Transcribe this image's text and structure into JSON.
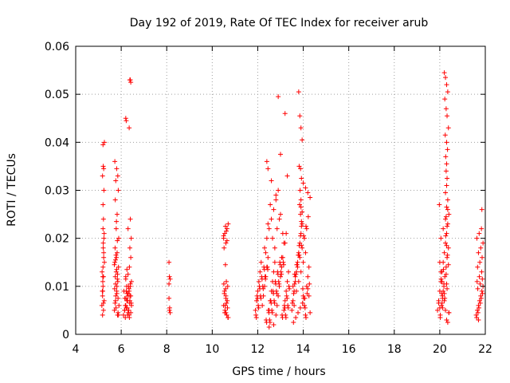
{
  "chart_data": {
    "type": "scatter",
    "title": "Day 192 of 2019, Rate Of TEC Index for receiver arub",
    "xlabel": "GPS time / hours",
    "ylabel": "ROTI / TECUs",
    "xlim": [
      4,
      22
    ],
    "ylim": [
      0,
      0.06
    ],
    "x_ticks": [
      "4",
      "6",
      "8",
      "10",
      "12",
      "14",
      "16",
      "18",
      "20",
      "22"
    ],
    "y_ticks": [
      "0",
      "0.01",
      "0.02",
      "0.03",
      "0.04",
      "0.05",
      "0.06"
    ],
    "grid": true,
    "marker": "+",
    "color": "#ff0000",
    "series": [
      {
        "x": [
          5.15,
          5.18,
          5.2,
          5.22,
          5.25,
          5.2,
          5.23,
          5.17,
          5.21,
          5.24,
          5.19,
          5.22,
          5.16,
          5.26,
          5.2,
          5.18,
          5.23,
          5.21,
          5.25,
          5.19,
          5.22,
          5.2,
          5.24,
          5.18,
          5.21,
          5.26,
          5.2,
          5.23,
          5.19,
          5.22,
          5.7,
          5.75,
          5.8,
          5.85,
          5.78,
          5.72,
          5.82,
          5.9,
          5.76,
          5.81,
          5.74,
          5.88,
          5.79,
          5.73,
          5.84,
          5.77,
          5.86,
          5.71,
          5.83,
          5.8,
          5.75,
          5.89,
          5.78,
          5.82,
          5.74,
          5.87,
          5.76,
          5.8,
          5.72,
          5.85,
          5.79,
          5.83,
          5.77,
          5.81,
          5.73,
          5.88,
          5.75,
          5.84,
          5.7,
          5.86,
          6.1,
          6.15,
          6.2,
          6.25,
          6.3,
          6.35,
          6.4,
          6.45,
          6.2,
          6.28,
          6.33,
          6.18,
          6.38,
          6.42,
          6.12,
          6.24,
          6.36,
          6.3,
          6.22,
          6.44,
          6.16,
          6.26,
          6.34,
          6.4,
          6.2,
          6.3,
          6.25,
          6.35,
          6.15,
          6.45,
          6.28,
          6.38,
          6.22,
          6.32,
          6.18,
          6.42,
          6.27,
          6.37,
          6.21,
          6.31,
          6.2,
          6.22,
          6.38,
          6.4,
          6.42,
          6.35,
          6.3,
          6.4,
          6.44,
          6.38,
          6.42,
          6.36,
          8.1,
          8.12,
          8.15,
          8.1,
          8.13,
          8.15,
          8.1,
          8.12,
          10.5,
          10.55,
          10.6,
          10.65,
          10.7,
          10.52,
          10.58,
          10.62,
          10.68,
          10.54,
          10.6,
          10.66,
          10.5,
          10.56,
          10.64,
          10.7,
          10.53,
          10.59,
          10.63,
          10.67,
          10.55,
          10.6,
          10.51,
          10.57,
          10.69,
          10.6,
          10.65,
          10.5,
          10.62,
          10.58,
          11.9,
          11.95,
          12.0,
          12.05,
          12.1,
          12.15,
          12.2,
          12.25,
          12.3,
          12.35,
          12.4,
          12.45,
          12.5,
          12.55,
          12.6,
          12.65,
          12.7,
          12.75,
          12.8,
          12.85,
          12.9,
          12.95,
          13.0,
          13.05,
          13.1,
          13.15,
          13.2,
          13.25,
          13.3,
          13.35,
          11.92,
          12.02,
          12.12,
          12.22,
          12.32,
          12.42,
          12.52,
          12.62,
          12.72,
          12.82,
          12.92,
          13.02,
          13.12,
          13.22,
          13.32,
          11.97,
          12.07,
          12.17,
          12.27,
          12.37,
          12.47,
          12.57,
          12.67,
          12.77,
          12.87,
          12.97,
          13.07,
          13.17,
          13.27,
          13.37,
          11.94,
          12.04,
          12.14,
          12.24,
          12.34,
          12.44,
          12.54,
          12.64,
          12.74,
          12.84,
          12.94,
          13.04,
          13.14,
          13.24,
          13.34,
          11.99,
          12.09,
          12.19,
          12.29,
          12.39,
          12.49,
          12.59,
          12.69,
          12.79,
          12.89,
          12.99,
          13.09,
          13.19,
          13.29,
          13.39,
          12.3,
          12.4,
          12.5,
          12.6,
          12.7,
          12.8,
          12.9,
          13.0,
          13.1,
          13.2,
          12.35,
          12.45,
          12.55,
          12.65,
          12.75,
          12.85,
          12.95,
          13.05,
          13.15,
          13.25,
          12.4,
          12.45,
          12.9,
          13.0,
          13.2,
          13.3,
          12.6,
          12.8,
          12.5,
          12.7,
          13.5,
          13.55,
          13.6,
          13.65,
          13.7,
          13.75,
          13.8,
          13.85,
          13.9,
          13.95,
          14.0,
          14.05,
          14.1,
          14.15,
          14.2,
          14.25,
          14.3,
          13.52,
          13.58,
          13.62,
          13.68,
          13.72,
          13.78,
          13.82,
          13.88,
          13.92,
          13.98,
          14.02,
          14.08,
          14.12,
          13.55,
          13.65,
          13.75,
          13.85,
          13.95,
          14.05,
          14.15,
          14.25,
          13.6,
          13.7,
          13.8,
          13.9,
          14.0,
          14.1,
          14.2,
          13.57,
          13.67,
          13.77,
          13.87,
          13.97,
          14.07,
          14.17,
          14.27,
          13.62,
          13.72,
          13.82,
          13.92,
          14.02,
          14.12,
          14.22,
          13.8,
          13.85,
          13.9,
          13.95,
          13.82,
          13.88,
          13.92,
          13.86,
          13.9,
          13.84,
          13.88,
          13.92,
          14.0,
          14.1,
          14.2,
          14.3,
          13.9,
          13.95,
          19.9,
          19.95,
          20.0,
          20.05,
          20.1,
          20.15,
          20.2,
          20.25,
          20.3,
          20.35,
          20.4,
          20.02,
          20.08,
          20.12,
          20.18,
          20.22,
          20.28,
          20.32,
          20.38,
          20.05,
          20.15,
          20.25,
          20.35,
          19.98,
          20.1,
          20.2,
          20.3,
          20.4,
          20.0,
          20.12,
          20.2,
          20.25,
          20.3,
          20.35,
          20.22,
          20.28,
          20.32,
          20.38,
          20.24,
          20.3,
          20.34,
          20.26,
          20.3,
          20.28,
          20.32,
          20.3,
          20.25,
          20.35,
          20.3,
          20.28,
          20.32,
          20.26,
          20.3,
          20.34,
          20.0,
          20.05,
          20.1,
          20.15,
          20.2,
          20.25,
          20.3,
          20.35,
          20.4,
          19.95,
          20.08,
          20.18,
          20.28,
          20.38,
          20.02,
          20.12,
          20.22,
          20.32,
          20.06,
          20.16,
          21.6,
          21.65,
          21.7,
          21.75,
          21.8,
          21.85,
          21.9,
          21.62,
          21.68,
          21.72,
          21.78,
          21.82,
          21.88,
          21.64,
          21.74,
          21.84,
          21.66,
          21.76,
          21.86,
          21.7,
          21.8,
          21.9,
          21.63,
          21.73,
          21.83,
          21.67,
          21.77,
          21.87,
          21.85,
          21.7
        ],
        "y": [
          0.006,
          0.008,
          0.01,
          0.012,
          0.007,
          0.014,
          0.016,
          0.009,
          0.018,
          0.02,
          0.011,
          0.005,
          0.013,
          0.015,
          0.022,
          0.004,
          0.017,
          0.019,
          0.021,
          0.009,
          0.024,
          0.027,
          0.03,
          0.033,
          0.035,
          0.04,
          0.0395,
          0.0345,
          0.012,
          0.0065,
          0.005,
          0.007,
          0.009,
          0.011,
          0.013,
          0.015,
          0.017,
          0.006,
          0.008,
          0.01,
          0.012,
          0.014,
          0.016,
          0.018,
          0.004,
          0.0055,
          0.0075,
          0.0095,
          0.0115,
          0.0135,
          0.0155,
          0.02,
          0.022,
          0.025,
          0.028,
          0.03,
          0.032,
          0.0345,
          0.036,
          0.033,
          0.0235,
          0.0195,
          0.0165,
          0.0085,
          0.0065,
          0.004,
          0.0105,
          0.0125,
          0.0145,
          0.0045,
          0.004,
          0.005,
          0.006,
          0.007,
          0.008,
          0.009,
          0.01,
          0.011,
          0.012,
          0.004,
          0.005,
          0.006,
          0.007,
          0.008,
          0.009,
          0.01,
          0.0035,
          0.0045,
          0.0055,
          0.0065,
          0.0075,
          0.0085,
          0.0095,
          0.0105,
          0.0115,
          0.0125,
          0.0135,
          0.004,
          0.005,
          0.006,
          0.007,
          0.008,
          0.009,
          0.01,
          0.0035,
          0.0045,
          0.0055,
          0.0065,
          0.0075,
          0.0085,
          0.045,
          0.0445,
          0.053,
          0.053,
          0.0525,
          0.043,
          0.022,
          0.024,
          0.02,
          0.018,
          0.016,
          0.014,
          0.015,
          0.012,
          0.0115,
          0.0075,
          0.0055,
          0.0045,
          0.0105,
          0.005,
          0.02,
          0.021,
          0.019,
          0.022,
          0.023,
          0.018,
          0.0145,
          0.011,
          0.01,
          0.009,
          0.008,
          0.007,
          0.006,
          0.005,
          0.004,
          0.0035,
          0.0085,
          0.0095,
          0.0065,
          0.0055,
          0.0045,
          0.0075,
          0.0105,
          0.006,
          0.0035,
          0.0045,
          0.0195,
          0.0205,
          0.0215,
          0.0225,
          0.005,
          0.007,
          0.009,
          0.011,
          0.013,
          0.015,
          0.006,
          0.008,
          0.01,
          0.012,
          0.014,
          0.016,
          0.005,
          0.007,
          0.009,
          0.011,
          0.013,
          0.015,
          0.004,
          0.006,
          0.008,
          0.01,
          0.012,
          0.014,
          0.016,
          0.005,
          0.007,
          0.009,
          0.011,
          0.013,
          0.004,
          0.006,
          0.008,
          0.01,
          0.012,
          0.014,
          0.003,
          0.005,
          0.007,
          0.009,
          0.011,
          0.013,
          0.015,
          0.004,
          0.006,
          0.008,
          0.01,
          0.012,
          0.014,
          0.003,
          0.005,
          0.007,
          0.009,
          0.011,
          0.013,
          0.015,
          0.004,
          0.006,
          0.008,
          0.01,
          0.0035,
          0.0055,
          0.0075,
          0.0095,
          0.0115,
          0.0135,
          0.0025,
          0.0045,
          0.0065,
          0.0085,
          0.0105,
          0.0125,
          0.0145,
          0.0035,
          0.0055,
          0.0075,
          0.0095,
          0.0115,
          0.0135,
          0.0025,
          0.0045,
          0.0065,
          0.0085,
          0.0105,
          0.0125,
          0.0145,
          0.0035,
          0.0055,
          0.0075,
          0.0095,
          0.018,
          0.02,
          0.022,
          0.024,
          0.026,
          0.028,
          0.03,
          0.025,
          0.021,
          0.019,
          0.017,
          0.023,
          0.027,
          0.02,
          0.018,
          0.022,
          0.024,
          0.016,
          0.019,
          0.021,
          0.036,
          0.0345,
          0.0495,
          0.0375,
          0.046,
          0.033,
          0.032,
          0.029,
          0.0015,
          0.002,
          0.005,
          0.007,
          0.009,
          0.011,
          0.013,
          0.015,
          0.017,
          0.019,
          0.021,
          0.023,
          0.008,
          0.006,
          0.004,
          0.01,
          0.012,
          0.014,
          0.0045,
          0.0065,
          0.0085,
          0.0105,
          0.0125,
          0.0145,
          0.0165,
          0.0185,
          0.0205,
          0.0225,
          0.0095,
          0.0075,
          0.0055,
          0.0035,
          0.01,
          0.012,
          0.014,
          0.016,
          0.018,
          0.02,
          0.022,
          0.008,
          0.006,
          0.009,
          0.011,
          0.013,
          0.015,
          0.017,
          0.0095,
          0.0025,
          0.0035,
          0.0045,
          0.0055,
          0.0065,
          0.0075,
          0.0085,
          0.0105,
          0.0125,
          0.0145,
          0.0165,
          0.0185,
          0.0205,
          0.0225,
          0.0245,
          0.0505,
          0.0455,
          0.043,
          0.0405,
          0.035,
          0.0345,
          0.0325,
          0.03,
          0.028,
          0.027,
          0.025,
          0.0235,
          0.0315,
          0.0305,
          0.0295,
          0.0285,
          0.0265,
          0.0255,
          0.005,
          0.007,
          0.009,
          0.011,
          0.013,
          0.015,
          0.017,
          0.019,
          0.021,
          0.023,
          0.025,
          0.004,
          0.006,
          0.008,
          0.01,
          0.012,
          0.014,
          0.016,
          0.018,
          0.02,
          0.022,
          0.024,
          0.026,
          0.027,
          0.0065,
          0.0085,
          0.0105,
          0.0045,
          0.0055,
          0.0075,
          0.0545,
          0.0535,
          0.052,
          0.0505,
          0.049,
          0.047,
          0.0455,
          0.043,
          0.0415,
          0.04,
          0.0385,
          0.037,
          0.0355,
          0.034,
          0.0325,
          0.031,
          0.0295,
          0.028,
          0.0265,
          0.0245,
          0.0225,
          0.0205,
          0.0185,
          0.0165,
          0.015,
          0.013,
          0.011,
          0.009,
          0.007,
          0.005,
          0.003,
          0.0025,
          0.0045,
          0.0065,
          0.0085,
          0.0105,
          0.0125,
          0.0145,
          0.0035,
          0.0055,
          0.0075,
          0.0095,
          0.0115,
          0.0135,
          0.004,
          0.005,
          0.006,
          0.007,
          0.008,
          0.009,
          0.01,
          0.0035,
          0.0045,
          0.0055,
          0.0065,
          0.0075,
          0.0085,
          0.011,
          0.012,
          0.013,
          0.014,
          0.015,
          0.016,
          0.017,
          0.018,
          0.019,
          0.02,
          0.021,
          0.022,
          0.0095,
          0.0105,
          0.0115,
          0.026,
          0.003
        ]
      }
    ]
  }
}
